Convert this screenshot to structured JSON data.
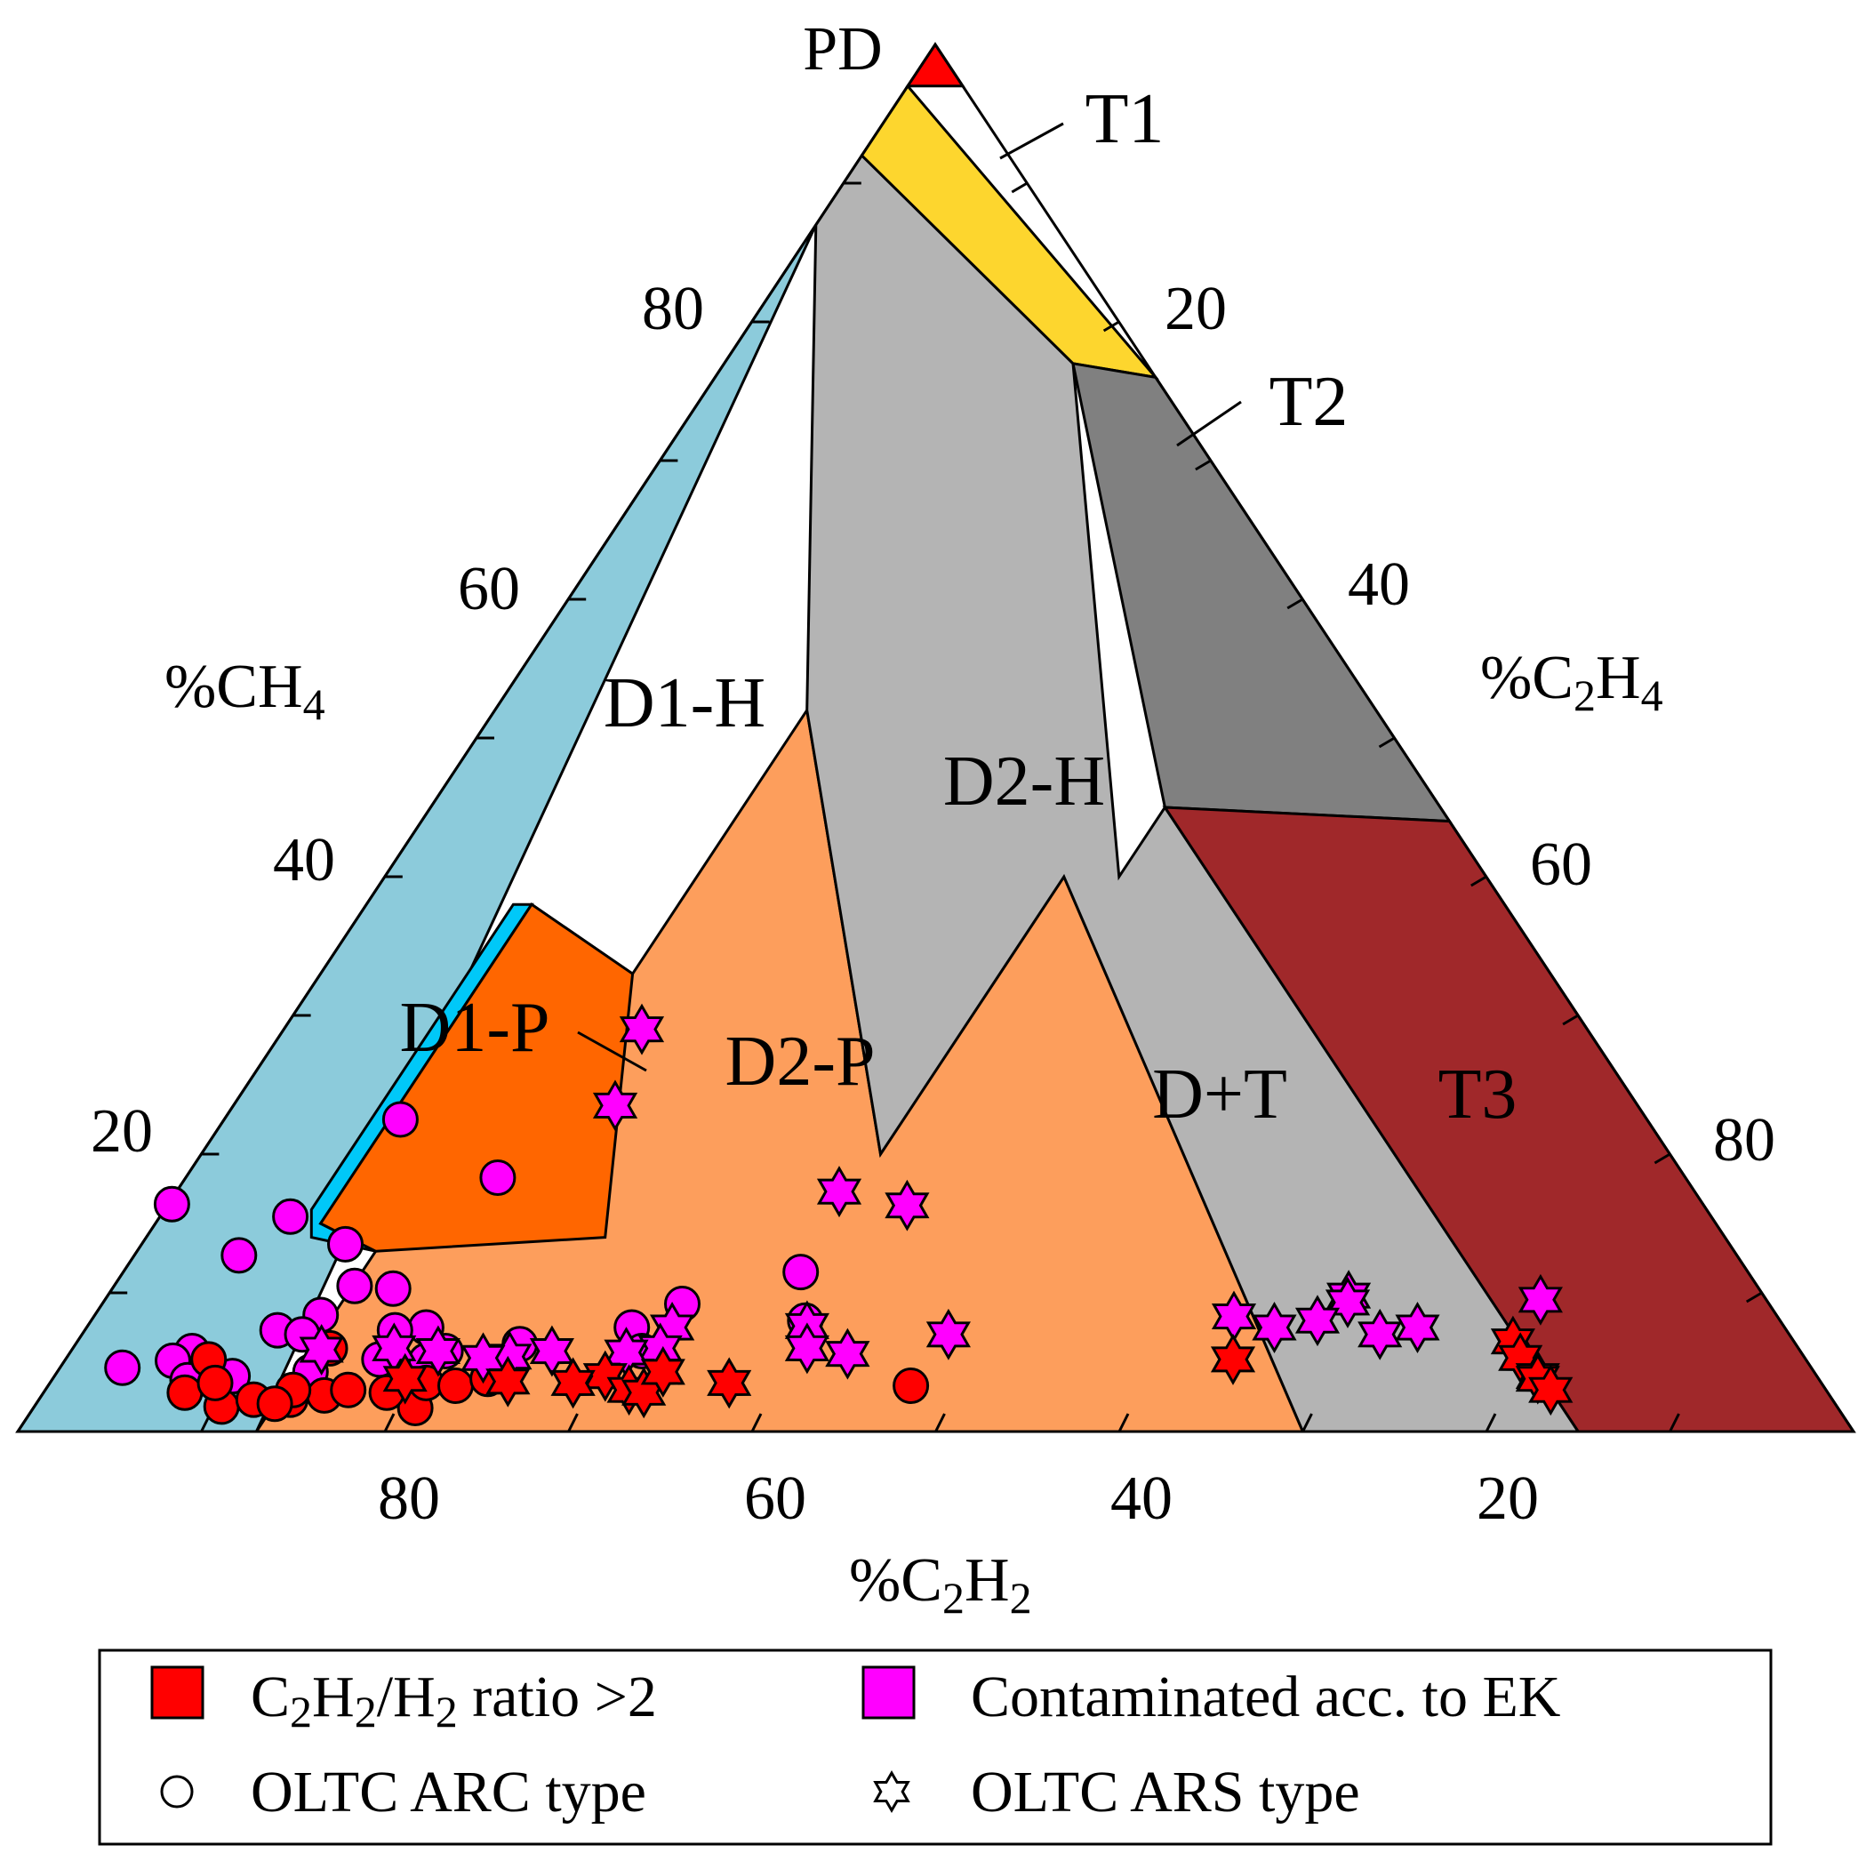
{
  "chart_data": {
    "type": "scatter",
    "subtype": "ternary (Duval Pentagon/Triangle style)",
    "axes": {
      "top_vertex": "PD",
      "left": {
        "label": "%CH",
        "sub": "4",
        "ticks": [
          20,
          40,
          60,
          80
        ]
      },
      "right": {
        "label": "%C",
        "sub1": "2",
        "mid": "H",
        "sub2": "4",
        "ticks": [
          20,
          40,
          60,
          80
        ]
      },
      "bottom": {
        "label": "%C",
        "sub1": "2",
        "mid": "H",
        "sub2": "2",
        "ticks": [
          80,
          60,
          40,
          20
        ]
      }
    },
    "regions": [
      {
        "name": "D1-H",
        "color": "#8ccbdb",
        "label": "D1-H"
      },
      {
        "name": "D2-H",
        "color": "#fd9e5c",
        "label": "D2-H"
      },
      {
        "name": "D1-P",
        "color": "#00c8f8",
        "label": "D1-P"
      },
      {
        "name": "D2-P",
        "color": "#ff6600",
        "label": "D2-P"
      },
      {
        "name": "D+T",
        "color": "#b4b4b4",
        "label": "D+T"
      },
      {
        "name": "T1",
        "color": "#fdd62e",
        "label": "T1"
      },
      {
        "name": "T2",
        "color": "#808080",
        "label": "T2"
      },
      {
        "name": "T3",
        "color": "#a0282a",
        "label": "T3"
      },
      {
        "name": "PD",
        "color": "#ff0000",
        "label": "PD"
      }
    ],
    "legend": {
      "items": [
        {
          "label_a": "C",
          "s1": "2",
          "label_b": "H",
          "s2": "2",
          "label_c": "/H",
          "s3": "2",
          "label_d": " ratio >2",
          "color": "#ff0000"
        },
        {
          "label": "Contaminated acc. to EK",
          "color": "#ff00ff"
        },
        {
          "label": "OLTC ARC type",
          "marker": "circle"
        },
        {
          "label": "OLTC ARS type",
          "marker": "star"
        }
      ]
    },
    "series": [
      {
        "name": "ARC, contaminated acc. to EK",
        "marker": "circle",
        "color": "#ff00ff",
        "points": [
          {
            "c2h2": 67.9,
            "ch4": 22.5
          },
          {
            "c2h2": 64.7,
            "ch4": 18.3
          },
          {
            "c2h2": 83.4,
            "ch4": 16.4
          },
          {
            "c2h2": 77.4,
            "ch4": 15.5
          },
          {
            "c2h2": 75.4,
            "ch4": 13.5
          },
          {
            "c2h2": 81.6,
            "ch4": 12.7
          },
          {
            "c2h2": 51.6,
            "ch4": 11.5
          },
          {
            "c2h2": 76.4,
            "ch4": 10.5
          },
          {
            "c2h2": 74.4,
            "ch4": 10.3
          },
          {
            "c2h2": 59.2,
            "ch4": 9.2
          },
          {
            "c2h2": 79.3,
            "ch4": 8.4
          },
          {
            "c2h2": 53.1,
            "ch4": 8.0
          },
          {
            "c2h2": 74.0,
            "ch4": 7.5
          },
          {
            "c2h2": 82.2,
            "ch4": 7.3
          },
          {
            "c2h2": 81.0,
            "ch4": 7.0
          },
          {
            "c2h2": 75.8,
            "ch4": 7.3
          },
          {
            "c2h2": 62.8,
            "ch4": 7.5
          },
          {
            "c2h2": 69.5,
            "ch4": 6.3
          },
          {
            "c2h2": 87.6,
            "ch4": 5.8
          },
          {
            "c2h2": 77.7,
            "ch4": 5.2
          },
          {
            "c2h2": 75.2,
            "ch4": 5.1
          },
          {
            "c2h2": 63.1,
            "ch4": 5.8
          },
          {
            "c2h2": 73.8,
            "ch4": 5.8
          },
          {
            "c2h2": 89.0,
            "ch4": 5.1
          },
          {
            "c2h2": 87.2,
            "ch4": 4.6
          },
          {
            "c2h2": 86.3,
            "ch4": 4.0
          },
          {
            "c2h2": 92.0,
            "ch4": 4.6
          },
          {
            "c2h2": 81.9,
            "ch4": 4.3
          },
          {
            "c2h2": 88.9,
            "ch4": 3.7
          }
        ]
      },
      {
        "name": "ARC, C2H2/H2 ratio >2",
        "marker": "circle",
        "color": "#ff0000",
        "points": [
          {
            "c2h2": 49.7,
            "ch4": 3.3
          },
          {
            "c2h2": 87.0,
            "ch4": 5.2
          },
          {
            "c2h2": 89.5,
            "ch4": 2.8
          },
          {
            "c2h2": 88.0,
            "ch4": 1.8
          },
          {
            "c2h2": 86.0,
            "ch4": 2.3
          },
          {
            "c2h2": 84.0,
            "ch4": 2.3
          },
          {
            "c2h2": 82.0,
            "ch4": 2.6
          },
          {
            "c2h2": 80.5,
            "ch4": 3.0
          },
          {
            "c2h2": 77.5,
            "ch4": 1.7
          },
          {
            "c2h2": 76.0,
            "ch4": 3.5
          },
          {
            "c2h2": 74.5,
            "ch4": 3.3
          },
          {
            "c2h2": 72.5,
            "ch4": 3.8
          },
          {
            "c2h2": 83.5,
            "ch4": 3.0
          },
          {
            "c2h2": 78.5,
            "ch4": 2.8
          },
          {
            "c2h2": 80.0,
            "ch4": 6.0
          },
          {
            "c2h2": 87.5,
            "ch4": 3.5
          },
          {
            "c2h2": 85.0,
            "ch4": 2.0
          }
        ]
      },
      {
        "name": "ARS, contaminated acc. to EK",
        "marker": "star",
        "color": "#ff00ff",
        "points": [
          {
            "c2h2": 51.5,
            "ch4": 29.0
          },
          {
            "c2h2": 55.7,
            "ch4": 23.5
          },
          {
            "c2h2": 46.6,
            "ch4": 17.3
          },
          {
            "c2h2": 43.4,
            "ch4": 16.3
          },
          {
            "c2h2": 22.6,
            "ch4": 9.8
          },
          {
            "c2h2": 22.9,
            "ch4": 9.3
          },
          {
            "c2h2": 12.3,
            "ch4": 9.5
          },
          {
            "c2h2": 29.6,
            "ch4": 8.3
          },
          {
            "c2h2": 25.2,
            "ch4": 8.0
          },
          {
            "c2h2": 20.0,
            "ch4": 7.5
          },
          {
            "c2h2": 27.8,
            "ch4": 7.5
          },
          {
            "c2h2": 53.2,
            "ch4": 7.6
          },
          {
            "c2h2": 45.8,
            "ch4": 7.0
          },
          {
            "c2h2": 60.6,
            "ch4": 7.5
          },
          {
            "c2h2": 22.3,
            "ch4": 7.0
          },
          {
            "c2h2": 54.0,
            "ch4": 6.0
          },
          {
            "c2h2": 52.0,
            "ch4": 5.6
          },
          {
            "c2h2": 68.0,
            "ch4": 5.8
          },
          {
            "c2h2": 74.2,
            "ch4": 5.8
          },
          {
            "c2h2": 76.5,
            "ch4": 6.0
          },
          {
            "c2h2": 70.5,
            "ch4": 5.4
          },
          {
            "c2h2": 62.0,
            "ch4": 6.0
          },
          {
            "c2h2": 64.0,
            "ch4": 5.7
          },
          {
            "c2h2": 72.0,
            "ch4": 5.3
          },
          {
            "c2h2": 80.5,
            "ch4": 5.9
          }
        ]
      },
      {
        "name": "ARS, C2H2/H2 ratio >2",
        "marker": "star",
        "color": "#ff0000",
        "points": [
          {
            "c2h2": 31.2,
            "ch4": 5.2
          },
          {
            "c2h2": 15.3,
            "ch4": 6.5
          },
          {
            "c2h2": 15.5,
            "ch4": 5.3
          },
          {
            "c2h2": 15.2,
            "ch4": 4.0
          },
          {
            "c2h2": 15.3,
            "ch4": 3.8
          },
          {
            "c2h2": 15.0,
            "ch4": 3.0
          },
          {
            "c2h2": 66.0,
            "ch4": 4.0
          },
          {
            "c2h2": 65.2,
            "ch4": 3.0
          },
          {
            "c2h2": 64.5,
            "ch4": 2.8
          },
          {
            "c2h2": 62.7,
            "ch4": 4.3
          },
          {
            "c2h2": 59.5,
            "ch4": 3.5
          },
          {
            "c2h2": 68.0,
            "ch4": 3.5
          },
          {
            "c2h2": 71.5,
            "ch4": 3.6
          },
          {
            "c2h2": 77.0,
            "ch4": 3.8
          }
        ]
      }
    ]
  }
}
